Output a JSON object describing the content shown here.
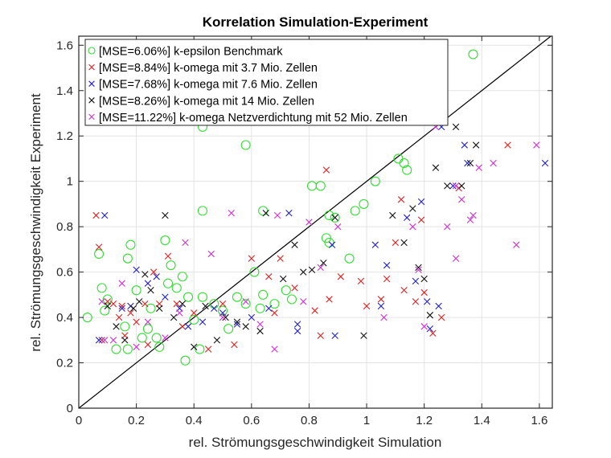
{
  "chart_data": {
    "type": "scatter",
    "title": "Korrelation Simulation-Experiment",
    "xlabel": "rel. Strömungsgeschwindigkeit Simulation",
    "ylabel": "rel. Strömungsgeschwindigkeit Experiment",
    "xlim": [
      0,
      1.645
    ],
    "ylim": [
      0,
      1.64
    ],
    "xticks": [
      "0",
      "0.2",
      "0.4",
      "0.6",
      "0.8",
      "1",
      "1.2",
      "1.4",
      "1.6"
    ],
    "yticks": [
      "0",
      "0.2",
      "0.4",
      "0.6",
      "0.8",
      "1",
      "1.2",
      "1.4",
      "1.6"
    ],
    "grid": true,
    "legend_position": "top-left",
    "reference_line": {
      "type": "y=x",
      "color": "#000000"
    },
    "series": [
      {
        "name": "[MSE=6.06%] k-epsilon Benchmark",
        "marker": "circle",
        "color": "#33dd33",
        "points": [
          [
            0.03,
            0.4
          ],
          [
            0.07,
            0.68
          ],
          [
            0.08,
            0.53
          ],
          [
            0.1,
            0.48
          ],
          [
            0.09,
            0.43
          ],
          [
            0.13,
            0.26
          ],
          [
            0.16,
            0.36
          ],
          [
            0.17,
            0.26
          ],
          [
            0.18,
            0.72
          ],
          [
            0.17,
            0.66
          ],
          [
            0.2,
            0.52
          ],
          [
            0.22,
            0.31
          ],
          [
            0.24,
            0.35
          ],
          [
            0.25,
            0.44
          ],
          [
            0.27,
            0.31
          ],
          [
            0.28,
            0.27
          ],
          [
            0.3,
            0.74
          ],
          [
            0.31,
            0.55
          ],
          [
            0.32,
            0.63
          ],
          [
            0.34,
            0.53
          ],
          [
            0.36,
            0.58
          ],
          [
            0.37,
            0.21
          ],
          [
            0.38,
            0.49
          ],
          [
            0.4,
            0.39
          ],
          [
            0.42,
            0.26
          ],
          [
            0.43,
            1.24
          ],
          [
            0.43,
            0.87
          ],
          [
            0.43,
            0.49
          ],
          [
            0.47,
            0.46
          ],
          [
            0.5,
            0.43
          ],
          [
            0.52,
            0.35
          ],
          [
            0.55,
            0.49
          ],
          [
            0.58,
            1.16
          ],
          [
            0.58,
            0.46
          ],
          [
            0.61,
            0.6
          ],
          [
            0.63,
            0.44
          ],
          [
            0.64,
            0.5
          ],
          [
            0.64,
            0.87
          ],
          [
            0.68,
            0.46
          ],
          [
            0.72,
            0.52
          ],
          [
            0.74,
            0.48
          ],
          [
            0.81,
            0.98
          ],
          [
            0.84,
            0.98
          ],
          [
            0.86,
            0.75
          ],
          [
            0.87,
            0.73
          ],
          [
            0.87,
            0.85
          ],
          [
            0.89,
            0.84
          ],
          [
            0.94,
            0.66
          ],
          [
            0.96,
            0.87
          ],
          [
            0.99,
            0.9
          ],
          [
            1.03,
            1.0
          ],
          [
            1.11,
            1.1
          ],
          [
            1.13,
            1.08
          ],
          [
            1.14,
            1.05
          ],
          [
            1.37,
            1.56
          ]
        ]
      },
      {
        "name": "[MSE=8.84%] k-omega mit 3.7 Mio. Zellen",
        "marker": "x",
        "color": "#e02020",
        "points": [
          [
            0.06,
            0.85
          ],
          [
            0.07,
            0.71
          ],
          [
            0.08,
            0.3
          ],
          [
            0.1,
            0.47
          ],
          [
            0.12,
            0.46
          ],
          [
            0.14,
            0.4
          ],
          [
            0.15,
            0.45
          ],
          [
            0.16,
            0.32
          ],
          [
            0.18,
            0.42
          ],
          [
            0.2,
            0.38
          ],
          [
            0.23,
            0.46
          ],
          [
            0.24,
            0.28
          ],
          [
            0.26,
            0.6
          ],
          [
            0.28,
            0.46
          ],
          [
            0.31,
            0.67
          ],
          [
            0.34,
            0.46
          ],
          [
            0.36,
            0.36
          ],
          [
            0.4,
            0.42
          ],
          [
            0.45,
            0.26
          ],
          [
            0.5,
            0.46
          ],
          [
            0.54,
            0.28
          ],
          [
            0.6,
            0.66
          ],
          [
            0.66,
            0.58
          ],
          [
            0.68,
            0.42
          ],
          [
            0.7,
            0.66
          ],
          [
            0.75,
            0.53
          ],
          [
            0.82,
            0.43
          ],
          [
            0.84,
            0.32
          ],
          [
            0.86,
            1.05
          ],
          [
            0.87,
            0.48
          ],
          [
            0.91,
            0.58
          ],
          [
            0.98,
            0.56
          ],
          [
            1.0,
            0.45
          ],
          [
            1.07,
            0.57
          ],
          [
            1.1,
            0.73
          ],
          [
            1.13,
            0.52
          ],
          [
            1.17,
            0.47
          ],
          [
            1.2,
            0.51
          ],
          [
            1.23,
            0.33
          ],
          [
            1.26,
            0.4
          ],
          [
            1.32,
            0.97
          ],
          [
            1.49,
            1.16
          ],
          [
            1.05,
            0.48
          ],
          [
            1.19,
            0.83
          ],
          [
            1.12,
            0.92
          ]
        ]
      },
      {
        "name": "[MSE=7.68%] k-omega mit 7.6 Mio. Zellen",
        "marker": "x",
        "color": "#2020d0",
        "points": [
          [
            0.09,
            0.85
          ],
          [
            0.07,
            0.3
          ],
          [
            0.15,
            0.44
          ],
          [
            0.18,
            0.45
          ],
          [
            0.2,
            0.61
          ],
          [
            0.24,
            0.55
          ],
          [
            0.27,
            0.58
          ],
          [
            0.3,
            0.49
          ],
          [
            0.35,
            0.44
          ],
          [
            0.38,
            0.36
          ],
          [
            0.43,
            0.38
          ],
          [
            0.47,
            0.44
          ],
          [
            0.5,
            0.42
          ],
          [
            0.55,
            0.37
          ],
          [
            0.6,
            0.4
          ],
          [
            0.66,
            0.44
          ],
          [
            0.73,
            0.86
          ],
          [
            0.76,
            0.37
          ],
          [
            0.76,
            0.34
          ],
          [
            0.88,
            0.72
          ],
          [
            0.89,
            0.32
          ],
          [
            1.03,
            0.72
          ],
          [
            1.07,
            0.63
          ],
          [
            1.14,
            0.84
          ],
          [
            1.17,
            0.56
          ],
          [
            1.19,
            0.91
          ],
          [
            1.21,
            0.47
          ],
          [
            1.22,
            0.35
          ],
          [
            1.25,
            0.45
          ],
          [
            1.3,
            0.98
          ],
          [
            1.34,
            1.16
          ],
          [
            1.35,
            1.08
          ],
          [
            1.62,
            1.08
          ],
          [
            1.05,
            0.45
          ],
          [
            1.26,
            1.24
          ]
        ]
      },
      {
        "name": "[MSE=8.26%] k-omega mit 14 Mio. Zellen",
        "marker": "x",
        "color": "#111111",
        "points": [
          [
            0.1,
            0.45
          ],
          [
            0.13,
            0.36
          ],
          [
            0.16,
            0.3
          ],
          [
            0.19,
            0.44
          ],
          [
            0.21,
            0.47
          ],
          [
            0.23,
            0.59
          ],
          [
            0.25,
            0.52
          ],
          [
            0.28,
            0.44
          ],
          [
            0.33,
            0.4
          ],
          [
            0.36,
            0.46
          ],
          [
            0.4,
            0.27
          ],
          [
            0.44,
            0.45
          ],
          [
            0.48,
            0.3
          ],
          [
            0.51,
            0.4
          ],
          [
            0.55,
            0.38
          ],
          [
            0.58,
            0.36
          ],
          [
            0.63,
            0.34
          ],
          [
            0.65,
            0.86
          ],
          [
            0.71,
            0.57
          ],
          [
            0.75,
            0.72
          ],
          [
            0.78,
            0.6
          ],
          [
            0.81,
            0.61
          ],
          [
            0.85,
            0.64
          ],
          [
            0.89,
            0.84
          ],
          [
            0.99,
            0.32
          ],
          [
            1.09,
            0.85
          ],
          [
            1.13,
            0.73
          ],
          [
            1.18,
            0.62
          ],
          [
            1.2,
            0.57
          ],
          [
            1.22,
            0.41
          ],
          [
            1.28,
            0.98
          ],
          [
            1.31,
            1.24
          ],
          [
            1.38,
            1.16
          ],
          [
            1.36,
            1.08
          ],
          [
            1.33,
            0.98
          ],
          [
            1.24,
            1.06
          ],
          [
            0.3,
            0.85
          ],
          [
            1.16,
            0.88
          ]
        ]
      },
      {
        "name": "[MSE=11.22%] k-omega Netzverdichtung mit 52 Mio. Zellen",
        "marker": "x",
        "color": "#d030d0",
        "points": [
          [
            0.08,
            0.47
          ],
          [
            0.09,
            0.3
          ],
          [
            0.12,
            0.3
          ],
          [
            0.15,
            0.55
          ],
          [
            0.2,
            0.27
          ],
          [
            0.24,
            0.38
          ],
          [
            0.3,
            0.31
          ],
          [
            0.35,
            0.42
          ],
          [
            0.37,
            0.73
          ],
          [
            0.46,
            0.68
          ],
          [
            0.5,
            0.4
          ],
          [
            0.53,
            0.86
          ],
          [
            0.58,
            0.47
          ],
          [
            0.63,
            0.37
          ],
          [
            0.68,
            0.26
          ],
          [
            0.69,
            0.85
          ],
          [
            0.78,
            0.47
          ],
          [
            0.8,
            0.82
          ],
          [
            0.84,
            0.62
          ],
          [
            0.9,
            0.8
          ],
          [
            1.06,
            0.4
          ],
          [
            1.16,
            0.8
          ],
          [
            1.18,
            0.61
          ],
          [
            1.2,
            0.36
          ],
          [
            1.28,
            0.8
          ],
          [
            1.31,
            0.66
          ],
          [
            1.33,
            0.92
          ],
          [
            1.36,
            0.83
          ],
          [
            1.37,
            0.85
          ],
          [
            1.39,
            1.06
          ],
          [
            1.44,
            1.08
          ],
          [
            1.52,
            0.72
          ],
          [
            1.59,
            1.16
          ],
          [
            1.31,
            0.98
          ],
          [
            1.24,
            1.24
          ]
        ]
      }
    ]
  }
}
